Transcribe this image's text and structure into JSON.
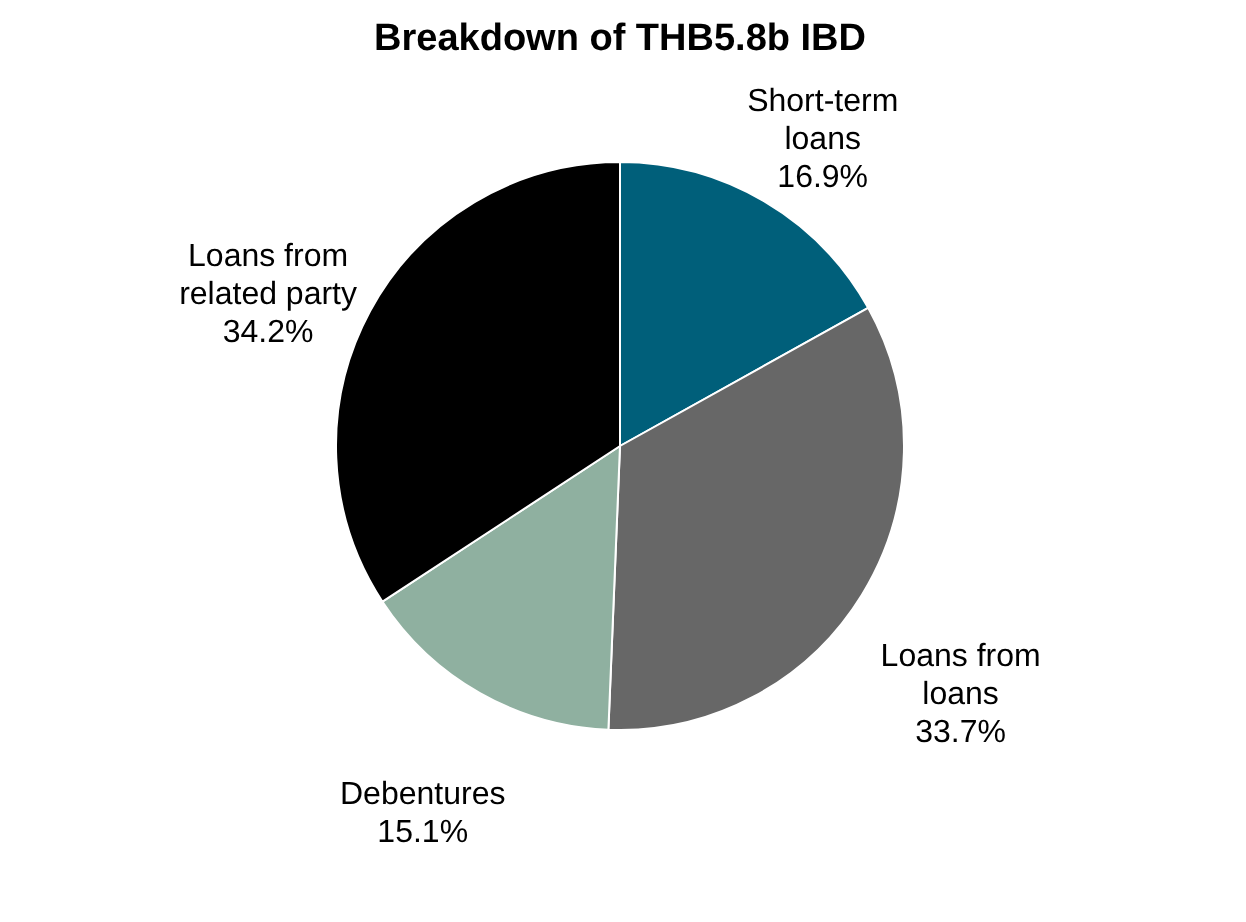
{
  "chart_data": {
    "type": "pie",
    "title": "Breakdown of THB5.8b IBD",
    "categories": [
      "Short-term loans",
      "Loans from loans",
      "Debentures",
      "Loans from related party"
    ],
    "values": [
      16.9,
      33.7,
      15.1,
      34.2
    ],
    "colors": [
      "#005f7a",
      "#676767",
      "#8fb0a0",
      "#000000"
    ],
    "value_labels": [
      "16.9%",
      "33.7%",
      "15.1%",
      "34.2%"
    ],
    "legend": false
  }
}
